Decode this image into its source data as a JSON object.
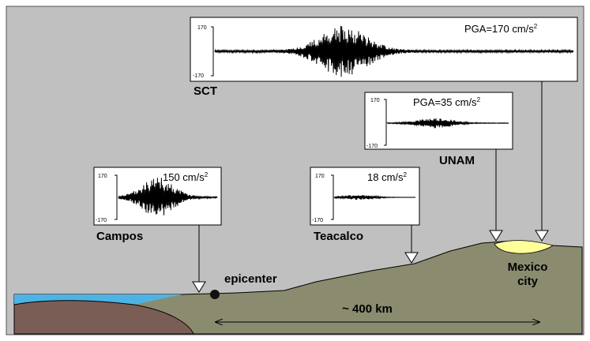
{
  "colors": {
    "background": "#c0c0c0",
    "ground": "#8b8b70",
    "sea": "#4eb3e4",
    "basement": "#7a5e55",
    "basin": "#ffff99",
    "panel": "#ffffff"
  },
  "axis_ticks": {
    "top": "170",
    "bottom": "-170"
  },
  "stations": [
    {
      "id": "sct",
      "name": "SCT",
      "pga_label": "PGA=170 cm/s",
      "pga_sup": "2",
      "amplitude": 170
    },
    {
      "id": "unam",
      "name": "UNAM",
      "pga_label": "PGA=35 cm/s",
      "pga_sup": "2",
      "amplitude": 35
    },
    {
      "id": "campos",
      "name": "Campos",
      "pga_label": "150 cm/s",
      "pga_sup": "2",
      "amplitude": 150
    },
    {
      "id": "teacalco",
      "name": "Teacalco",
      "pga_label": "18 cm/s",
      "pga_sup": "2",
      "amplitude": 18
    }
  ],
  "labels": {
    "epicenter": "epicenter",
    "city_line1": "Mexico",
    "city_line2": "city",
    "distance": "~ 400 km"
  },
  "icons": {
    "station_marker": "down-triangle-icon",
    "epicenter_marker": "filled-circle-icon",
    "distance_arrow": "double-headed-arrow-icon"
  }
}
